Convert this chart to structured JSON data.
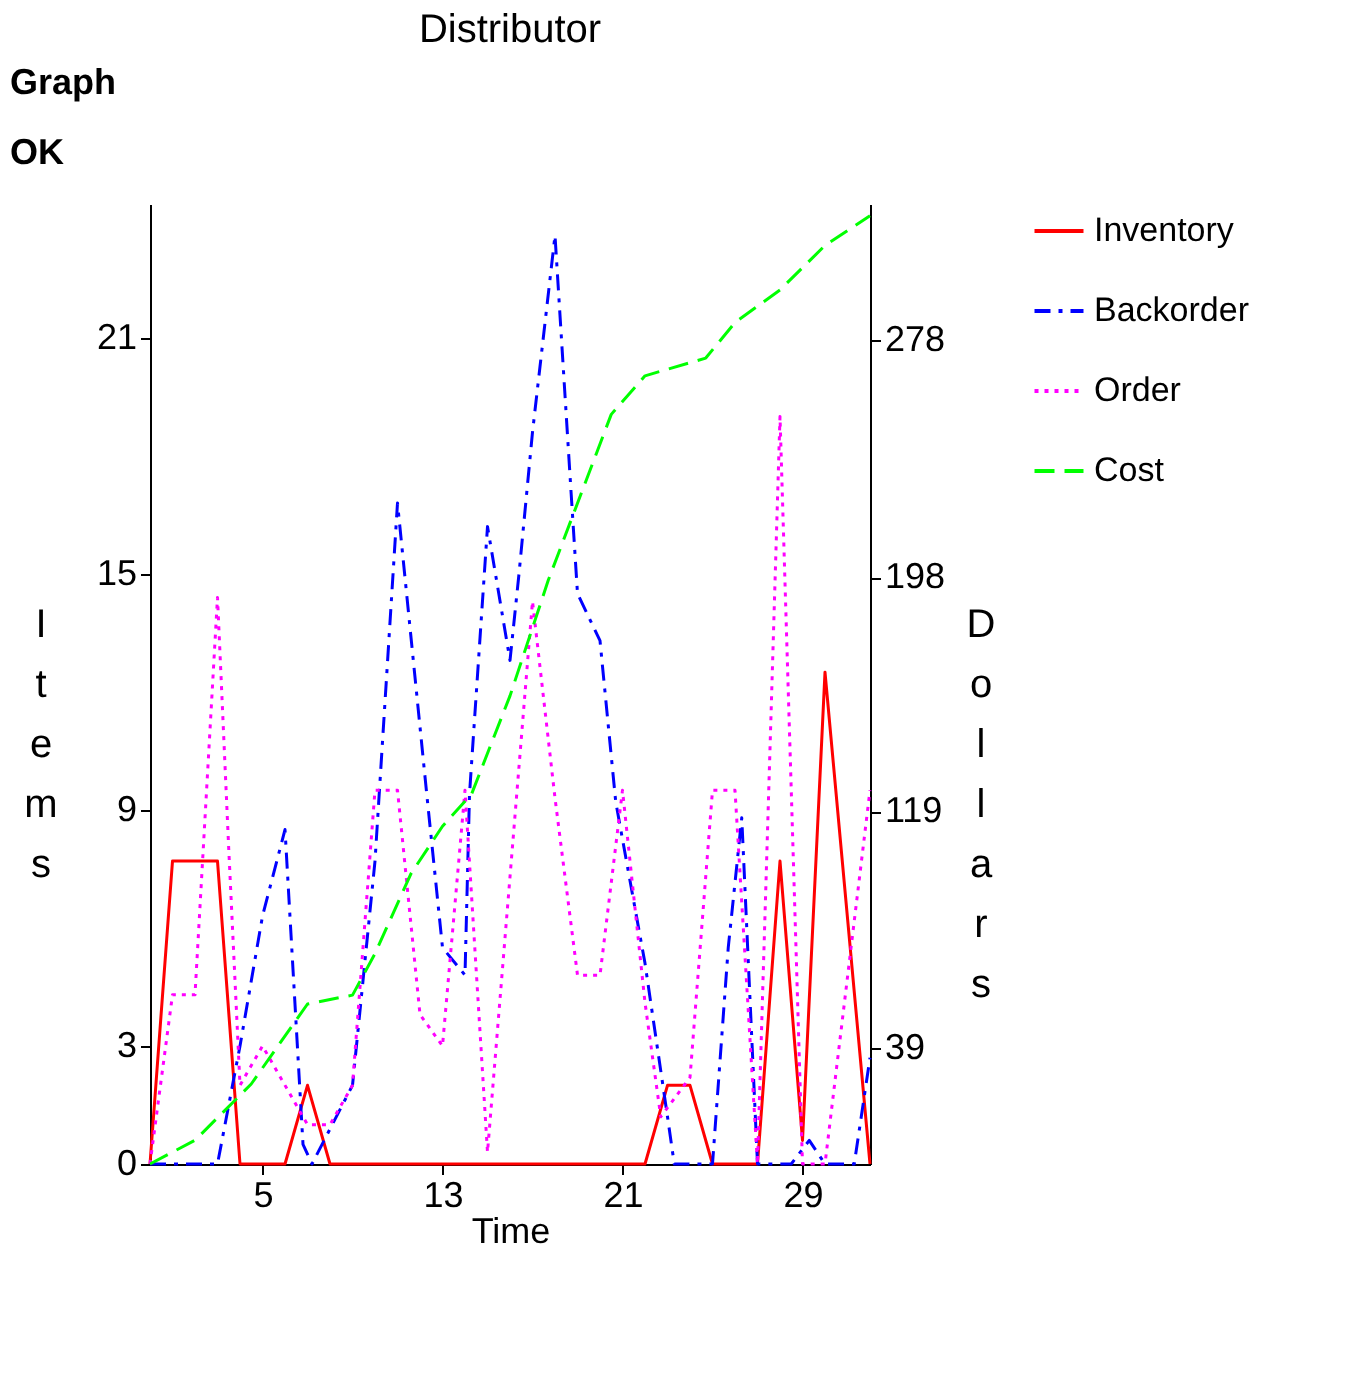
{
  "chart_data": {
    "type": "line",
    "title": "Distributor",
    "xlabel": "Time",
    "ylabel": "Items",
    "y2label": "Dollars",
    "annotations": [
      "Graph",
      "OK"
    ],
    "xlim": [
      0,
      32
    ],
    "xticks": [
      5,
      13,
      21,
      29
    ],
    "ylim": [
      0,
      24.4
    ],
    "yticks": [
      0,
      3,
      9,
      15,
      21
    ],
    "y2lim": [
      0,
      324
    ],
    "y2ticks": [
      39,
      119,
      198,
      278
    ],
    "grid": false,
    "legend": "right",
    "marker": "none",
    "series": [
      {
        "name": "Inventory",
        "color": "#ff0000",
        "line_style": "solid",
        "x": [
          0,
          1,
          3,
          4,
          6,
          7,
          8,
          22,
          23,
          24,
          25,
          27,
          28,
          29,
          30,
          32
        ],
        "values": [
          0,
          7.7,
          7.7,
          0,
          0,
          2,
          0,
          0,
          2,
          2,
          0,
          0,
          7.7,
          0.6,
          12.5,
          0
        ]
      },
      {
        "name": "Backorder",
        "color": "#0000ff",
        "line_style": "dashdot",
        "x": [
          0,
          3,
          4,
          5,
          6,
          6.8,
          7.2,
          9,
          10,
          11,
          12.3,
          13,
          14,
          14.2,
          15,
          16,
          16.4,
          17,
          18,
          18.7,
          19,
          20,
          20.7,
          22,
          23,
          23.3,
          25,
          25.7,
          26.3,
          27,
          28.5,
          29.3,
          30,
          31.3,
          32
        ],
        "values": [
          0,
          0,
          3,
          6.3,
          8.5,
          0.5,
          0,
          2,
          7.7,
          16.8,
          9.4,
          5.5,
          4.8,
          9.4,
          16.2,
          12.8,
          15,
          18.6,
          23.6,
          17.2,
          14.5,
          13.3,
          9.2,
          5.1,
          1.2,
          0,
          0,
          5.5,
          8.8,
          0,
          0,
          0.6,
          0,
          0,
          2.7
        ]
      },
      {
        "name": "Order",
        "color": "#ff00ff",
        "line_style": "dotted",
        "x": [
          0,
          1,
          2,
          3,
          3.5,
          4,
          5,
          7,
          8,
          9,
          10,
          11,
          12,
          13,
          14,
          15,
          17,
          18,
          19,
          20,
          21,
          22,
          22.7,
          24,
          25,
          26,
          27,
          28,
          29,
          30,
          32
        ],
        "values": [
          0,
          4.3,
          4.3,
          14.4,
          8,
          2,
          3,
          1,
          1,
          2,
          9.5,
          9.5,
          3.8,
          3,
          9.5,
          0.3,
          14.3,
          9.3,
          4.8,
          4.8,
          9.5,
          4.1,
          1.2,
          2.2,
          9.5,
          9.5,
          0,
          19,
          0,
          0,
          9.5
        ]
      },
      {
        "name": "Cost",
        "color": "#00ff00",
        "line_style": "dashed",
        "axis": "y2",
        "x": [
          0,
          2,
          4.5,
          7,
          9,
          10,
          11.6,
          13,
          14.3,
          16,
          17.7,
          20.5,
          22,
          24.7,
          26,
          28,
          30,
          32
        ],
        "values": [
          0,
          8,
          27,
          54,
          57,
          71,
          98,
          114,
          125,
          158,
          197,
          253,
          266,
          272,
          284,
          295,
          310,
          320
        ]
      }
    ]
  }
}
